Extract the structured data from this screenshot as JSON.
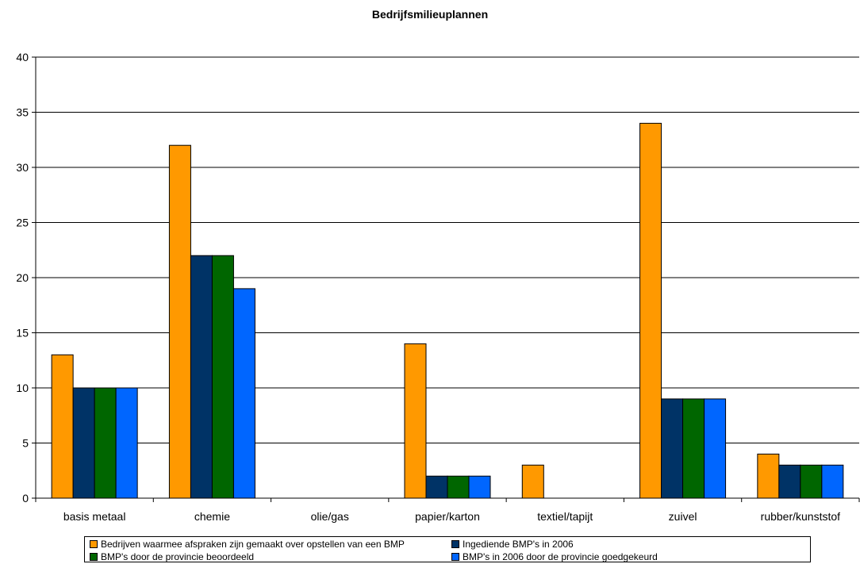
{
  "chart_data": {
    "type": "bar",
    "title": "Bedrijfsmilieuplannen",
    "xlabel": "",
    "ylabel": "",
    "ylim": [
      0,
      40
    ],
    "yticks": [
      0,
      5,
      10,
      15,
      20,
      25,
      30,
      35,
      40
    ],
    "grid": true,
    "legend_position": "bottom",
    "categories": [
      "basis metaal",
      "chemie",
      "olie/gas",
      "papier/karton",
      "textiel/tapijt",
      "zuivel",
      "rubber/kunststof"
    ],
    "series": [
      {
        "name": "Bedrijven waarmee afspraken zijn gemaakt over opstellen van een BMP",
        "color": "#FF9900",
        "values": [
          13,
          32,
          0,
          14,
          3,
          34,
          4
        ]
      },
      {
        "name": "Ingediende BMP's in 2006",
        "color": "#003366",
        "values": [
          10,
          22,
          0,
          2,
          0,
          9,
          3
        ]
      },
      {
        "name": "BMP's door de provincie beoordeeld",
        "color": "#006600",
        "values": [
          10,
          22,
          0,
          2,
          0,
          9,
          3
        ]
      },
      {
        "name": "BMP's in 2006 door de provincie goedgekeurd",
        "color": "#0066FF",
        "values": [
          10,
          19,
          0,
          2,
          0,
          9,
          3
        ]
      }
    ]
  }
}
